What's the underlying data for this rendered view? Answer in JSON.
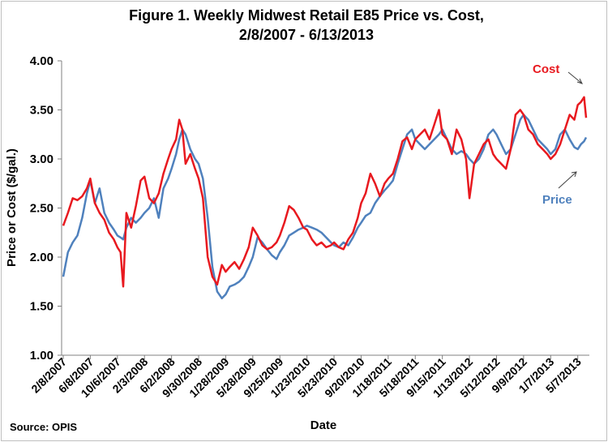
{
  "chart_data": {
    "type": "line",
    "title_line1": "Figure 1. Weekly Midwest Retail E85 Price vs. Cost,",
    "title_line2": "2/8/2007 - 6/13/2013",
    "xlabel": "Date",
    "ylabel": "Price or Cost ($/gal.)",
    "source": "Source: OPIS",
    "ylim": [
      1.0,
      4.0
    ],
    "yticks": [
      "1.00",
      "1.50",
      "2.00",
      "2.50",
      "3.00",
      "3.50",
      "4.00"
    ],
    "xtick_labels": [
      "2/8/2007",
      "6/8/2007",
      "10/6/2007",
      "2/3/2008",
      "6/2/2008",
      "9/30/2008",
      "1/28/2009",
      "5/28/2009",
      "9/25/2009",
      "1/23/2010",
      "5/23/2010",
      "9/20/2010",
      "1/18/2011",
      "5/18/2011",
      "9/15/2011",
      "1/13/2012",
      "5/12/2012",
      "9/9/2012",
      "1/7/2013",
      "5/7/2013"
    ],
    "grid": false,
    "series": [
      {
        "name": "Cost",
        "color": "#e8191f",
        "points": [
          [
            "2007-02-08",
            2.32
          ],
          [
            "2007-03-01",
            2.45
          ],
          [
            "2007-03-22",
            2.6
          ],
          [
            "2007-04-12",
            2.58
          ],
          [
            "2007-05-03",
            2.62
          ],
          [
            "2007-05-24",
            2.7
          ],
          [
            "2007-06-08",
            2.8
          ],
          [
            "2007-06-28",
            2.55
          ],
          [
            "2007-07-19",
            2.45
          ],
          [
            "2007-08-09",
            2.38
          ],
          [
            "2007-08-30",
            2.25
          ],
          [
            "2007-09-20",
            2.18
          ],
          [
            "2007-10-06",
            2.1
          ],
          [
            "2007-10-20",
            2.05
          ],
          [
            "2007-11-01",
            1.7
          ],
          [
            "2007-11-15",
            2.45
          ],
          [
            "2007-12-06",
            2.3
          ],
          [
            "2007-12-27",
            2.52
          ],
          [
            "2008-01-17",
            2.78
          ],
          [
            "2008-02-03",
            2.82
          ],
          [
            "2008-02-24",
            2.6
          ],
          [
            "2008-03-16",
            2.55
          ],
          [
            "2008-04-06",
            2.65
          ],
          [
            "2008-04-27",
            2.85
          ],
          [
            "2008-05-18",
            3.0
          ],
          [
            "2008-06-02",
            3.1
          ],
          [
            "2008-06-22",
            3.2
          ],
          [
            "2008-07-06",
            3.4
          ],
          [
            "2008-07-20",
            3.3
          ],
          [
            "2008-08-03",
            2.95
          ],
          [
            "2008-08-24",
            3.05
          ],
          [
            "2008-09-14",
            2.9
          ],
          [
            "2008-09-30",
            2.8
          ],
          [
            "2008-10-19",
            2.6
          ],
          [
            "2008-11-09",
            2.0
          ],
          [
            "2008-11-30",
            1.8
          ],
          [
            "2008-12-21",
            1.72
          ],
          [
            "2009-01-11",
            1.92
          ],
          [
            "2009-01-28",
            1.85
          ],
          [
            "2009-02-15",
            1.9
          ],
          [
            "2009-03-08",
            1.95
          ],
          [
            "2009-03-29",
            1.88
          ],
          [
            "2009-04-19",
            1.98
          ],
          [
            "2009-05-10",
            2.1
          ],
          [
            "2009-05-28",
            2.3
          ],
          [
            "2009-06-18",
            2.22
          ],
          [
            "2009-07-09",
            2.12
          ],
          [
            "2009-07-30",
            2.08
          ],
          [
            "2009-08-20",
            2.1
          ],
          [
            "2009-09-10",
            2.15
          ],
          [
            "2009-09-25",
            2.22
          ],
          [
            "2009-10-15",
            2.35
          ],
          [
            "2009-11-05",
            2.52
          ],
          [
            "2009-11-26",
            2.48
          ],
          [
            "2009-12-17",
            2.4
          ],
          [
            "2010-01-07",
            2.3
          ],
          [
            "2010-01-23",
            2.28
          ],
          [
            "2010-02-14",
            2.18
          ],
          [
            "2010-03-07",
            2.12
          ],
          [
            "2010-03-28",
            2.15
          ],
          [
            "2010-04-18",
            2.1
          ],
          [
            "2010-05-09",
            2.12
          ],
          [
            "2010-05-23",
            2.15
          ],
          [
            "2010-06-13",
            2.1
          ],
          [
            "2010-07-04",
            2.08
          ],
          [
            "2010-07-25",
            2.18
          ],
          [
            "2010-08-15",
            2.25
          ],
          [
            "2010-09-05",
            2.4
          ],
          [
            "2010-09-20",
            2.55
          ],
          [
            "2010-10-10",
            2.65
          ],
          [
            "2010-10-31",
            2.85
          ],
          [
            "2010-11-21",
            2.75
          ],
          [
            "2010-12-12",
            2.62
          ],
          [
            "2011-01-02",
            2.75
          ],
          [
            "2011-01-18",
            2.8
          ],
          [
            "2011-02-08",
            2.85
          ],
          [
            "2011-03-01",
            3.0
          ],
          [
            "2011-03-22",
            3.18
          ],
          [
            "2011-04-12",
            3.22
          ],
          [
            "2011-05-03",
            3.1
          ],
          [
            "2011-05-18",
            3.2
          ],
          [
            "2011-06-08",
            3.25
          ],
          [
            "2011-06-29",
            3.3
          ],
          [
            "2011-07-20",
            3.2
          ],
          [
            "2011-08-10",
            3.35
          ],
          [
            "2011-08-31",
            3.5
          ],
          [
            "2011-09-15",
            3.25
          ],
          [
            "2011-10-06",
            3.2
          ],
          [
            "2011-10-27",
            3.05
          ],
          [
            "2011-11-17",
            3.3
          ],
          [
            "2011-12-08",
            3.2
          ],
          [
            "2011-12-29",
            3.0
          ],
          [
            "2012-01-13",
            2.6
          ],
          [
            "2012-02-03",
            2.95
          ],
          [
            "2012-02-24",
            3.05
          ],
          [
            "2012-03-16",
            3.15
          ],
          [
            "2012-04-06",
            3.2
          ],
          [
            "2012-04-27",
            3.05
          ],
          [
            "2012-05-12",
            3.0
          ],
          [
            "2012-06-02",
            2.95
          ],
          [
            "2012-06-23",
            2.9
          ],
          [
            "2012-07-14",
            3.1
          ],
          [
            "2012-08-04",
            3.45
          ],
          [
            "2012-08-25",
            3.5
          ],
          [
            "2012-09-09",
            3.45
          ],
          [
            "2012-09-30",
            3.3
          ],
          [
            "2012-10-21",
            3.25
          ],
          [
            "2012-11-11",
            3.15
          ],
          [
            "2012-12-02",
            3.1
          ],
          [
            "2012-12-23",
            3.05
          ],
          [
            "2013-01-07",
            3.0
          ],
          [
            "2013-01-28",
            3.05
          ],
          [
            "2013-02-18",
            3.15
          ],
          [
            "2013-03-11",
            3.3
          ],
          [
            "2013-04-01",
            3.45
          ],
          [
            "2013-04-22",
            3.4
          ],
          [
            "2013-05-07",
            3.55
          ],
          [
            "2013-05-21",
            3.58
          ],
          [
            "2013-06-04",
            3.63
          ],
          [
            "2013-06-13",
            3.42
          ]
        ]
      },
      {
        "name": "Price",
        "color": "#4f81bd",
        "points": [
          [
            "2007-02-08",
            1.8
          ],
          [
            "2007-03-01",
            2.05
          ],
          [
            "2007-03-22",
            2.15
          ],
          [
            "2007-04-12",
            2.22
          ],
          [
            "2007-05-03",
            2.4
          ],
          [
            "2007-05-24",
            2.65
          ],
          [
            "2007-06-08",
            2.78
          ],
          [
            "2007-06-28",
            2.55
          ],
          [
            "2007-07-19",
            2.7
          ],
          [
            "2007-08-09",
            2.45
          ],
          [
            "2007-08-30",
            2.35
          ],
          [
            "2007-09-20",
            2.28
          ],
          [
            "2007-10-06",
            2.22
          ],
          [
            "2007-10-20",
            2.2
          ],
          [
            "2007-11-01",
            2.18
          ],
          [
            "2007-11-15",
            2.3
          ],
          [
            "2007-12-06",
            2.4
          ],
          [
            "2007-12-27",
            2.35
          ],
          [
            "2008-01-17",
            2.4
          ],
          [
            "2008-02-03",
            2.45
          ],
          [
            "2008-02-24",
            2.5
          ],
          [
            "2008-03-16",
            2.6
          ],
          [
            "2008-04-06",
            2.4
          ],
          [
            "2008-04-27",
            2.7
          ],
          [
            "2008-05-18",
            2.8
          ],
          [
            "2008-06-02",
            2.9
          ],
          [
            "2008-06-22",
            3.05
          ],
          [
            "2008-07-06",
            3.2
          ],
          [
            "2008-07-20",
            3.3
          ],
          [
            "2008-08-03",
            3.25
          ],
          [
            "2008-08-24",
            3.1
          ],
          [
            "2008-09-14",
            3.0
          ],
          [
            "2008-09-30",
            2.95
          ],
          [
            "2008-10-19",
            2.8
          ],
          [
            "2008-11-09",
            2.4
          ],
          [
            "2008-11-30",
            1.9
          ],
          [
            "2008-12-21",
            1.65
          ],
          [
            "2009-01-11",
            1.58
          ],
          [
            "2009-01-28",
            1.62
          ],
          [
            "2009-02-15",
            1.7
          ],
          [
            "2009-03-08",
            1.72
          ],
          [
            "2009-03-29",
            1.75
          ],
          [
            "2009-04-19",
            1.8
          ],
          [
            "2009-05-10",
            1.9
          ],
          [
            "2009-05-28",
            2.0
          ],
          [
            "2009-06-18",
            2.2
          ],
          [
            "2009-07-09",
            2.15
          ],
          [
            "2009-07-30",
            2.08
          ],
          [
            "2009-08-20",
            2.02
          ],
          [
            "2009-09-10",
            1.98
          ],
          [
            "2009-09-25",
            2.05
          ],
          [
            "2009-10-15",
            2.12
          ],
          [
            "2009-11-05",
            2.22
          ],
          [
            "2009-11-26",
            2.25
          ],
          [
            "2009-12-17",
            2.28
          ],
          [
            "2010-01-07",
            2.3
          ],
          [
            "2010-01-23",
            2.32
          ],
          [
            "2010-02-14",
            2.3
          ],
          [
            "2010-03-07",
            2.28
          ],
          [
            "2010-03-28",
            2.25
          ],
          [
            "2010-04-18",
            2.2
          ],
          [
            "2010-05-09",
            2.15
          ],
          [
            "2010-05-23",
            2.12
          ],
          [
            "2010-06-13",
            2.1
          ],
          [
            "2010-07-04",
            2.15
          ],
          [
            "2010-07-25",
            2.12
          ],
          [
            "2010-08-15",
            2.2
          ],
          [
            "2010-09-05",
            2.3
          ],
          [
            "2010-09-20",
            2.35
          ],
          [
            "2010-10-10",
            2.42
          ],
          [
            "2010-10-31",
            2.45
          ],
          [
            "2010-11-21",
            2.55
          ],
          [
            "2010-12-12",
            2.62
          ],
          [
            "2011-01-02",
            2.68
          ],
          [
            "2011-01-18",
            2.72
          ],
          [
            "2011-02-08",
            2.78
          ],
          [
            "2011-03-01",
            2.95
          ],
          [
            "2011-03-22",
            3.1
          ],
          [
            "2011-04-12",
            3.25
          ],
          [
            "2011-05-03",
            3.3
          ],
          [
            "2011-05-18",
            3.2
          ],
          [
            "2011-06-08",
            3.15
          ],
          [
            "2011-06-29",
            3.1
          ],
          [
            "2011-07-20",
            3.15
          ],
          [
            "2011-08-10",
            3.2
          ],
          [
            "2011-08-31",
            3.25
          ],
          [
            "2011-09-15",
            3.3
          ],
          [
            "2011-10-06",
            3.2
          ],
          [
            "2011-10-27",
            3.1
          ],
          [
            "2011-11-17",
            3.05
          ],
          [
            "2011-12-08",
            3.08
          ],
          [
            "2011-12-29",
            3.05
          ],
          [
            "2012-01-13",
            3.0
          ],
          [
            "2012-02-03",
            2.95
          ],
          [
            "2012-02-24",
            3.0
          ],
          [
            "2012-03-16",
            3.1
          ],
          [
            "2012-04-06",
            3.25
          ],
          [
            "2012-04-27",
            3.3
          ],
          [
            "2012-05-12",
            3.25
          ],
          [
            "2012-06-02",
            3.15
          ],
          [
            "2012-06-23",
            3.05
          ],
          [
            "2012-07-14",
            3.1
          ],
          [
            "2012-08-04",
            3.25
          ],
          [
            "2012-08-25",
            3.4
          ],
          [
            "2012-09-09",
            3.45
          ],
          [
            "2012-09-30",
            3.4
          ],
          [
            "2012-10-21",
            3.3
          ],
          [
            "2012-11-11",
            3.2
          ],
          [
            "2012-12-02",
            3.15
          ],
          [
            "2012-12-23",
            3.1
          ],
          [
            "2013-01-07",
            3.05
          ],
          [
            "2013-01-28",
            3.1
          ],
          [
            "2013-02-18",
            3.25
          ],
          [
            "2013-03-11",
            3.3
          ],
          [
            "2013-04-01",
            3.2
          ],
          [
            "2013-04-22",
            3.12
          ],
          [
            "2013-05-07",
            3.1
          ],
          [
            "2013-05-21",
            3.15
          ],
          [
            "2013-06-04",
            3.18
          ],
          [
            "2013-06-13",
            3.22
          ]
        ]
      }
    ]
  }
}
